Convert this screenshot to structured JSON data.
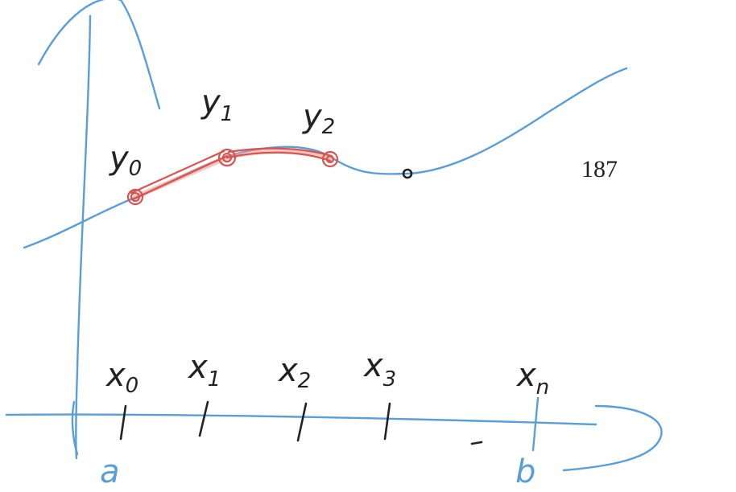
{
  "page_number": "187",
  "y_labels": [
    {
      "base": "y",
      "sub": "0"
    },
    {
      "base": "y",
      "sub": "1"
    },
    {
      "base": "y",
      "sub": "2"
    }
  ],
  "x_labels": [
    {
      "base": "x",
      "sub": "0"
    },
    {
      "base": "x",
      "sub": "1"
    },
    {
      "base": "x",
      "sub": "2"
    },
    {
      "base": "x",
      "sub": "3"
    },
    {
      "base": "x",
      "sub": "n"
    }
  ],
  "endpoint_labels": {
    "left": "a",
    "right": "b"
  },
  "colors": {
    "ink": "#222222",
    "axes": "#5a9ed8",
    "highlight": "#d9534f"
  }
}
